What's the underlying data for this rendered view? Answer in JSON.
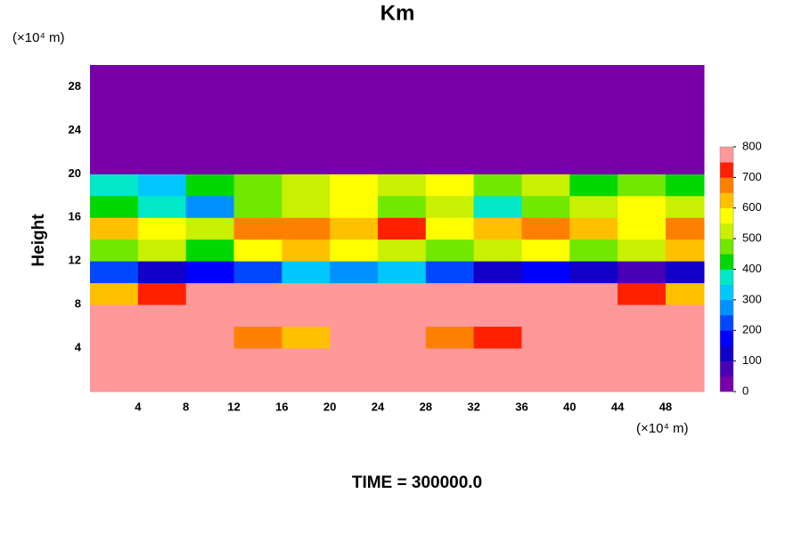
{
  "chart_data": {
    "type": "contour",
    "title": "Km",
    "y_unit": "(×10⁴ m)",
    "x_unit": "(×10⁴ m)",
    "ylabel": "Height",
    "footer": "TIME = 300000.0",
    "xlim": [
      0,
      51.2
    ],
    "ylim": [
      0,
      30
    ],
    "xticks": [
      4,
      8,
      12,
      16,
      20,
      24,
      28,
      32,
      36,
      40,
      44,
      48
    ],
    "yticks": [
      4,
      8,
      12,
      16,
      20,
      24,
      28
    ],
    "x": [
      2,
      6,
      10,
      14,
      18,
      22,
      26,
      30,
      34,
      38,
      42,
      46,
      50
    ],
    "y": [
      1,
      3,
      5,
      7,
      9,
      11,
      13,
      15,
      17,
      19,
      21,
      23,
      25,
      27,
      29
    ],
    "z": [
      [
        800,
        800,
        800,
        800,
        800,
        800,
        800,
        800,
        800,
        800,
        800,
        800,
        800
      ],
      [
        750,
        800,
        800,
        800,
        800,
        800,
        800,
        800,
        800,
        800,
        800,
        800,
        800
      ],
      [
        800,
        800,
        800,
        650,
        600,
        800,
        800,
        650,
        700,
        800,
        800,
        800,
        750
      ],
      [
        800,
        800,
        800,
        800,
        750,
        800,
        800,
        750,
        800,
        800,
        800,
        800,
        800
      ],
      [
        600,
        700,
        750,
        800,
        800,
        800,
        800,
        800,
        800,
        800,
        750,
        700,
        600
      ],
      [
        200,
        100,
        150,
        200,
        300,
        250,
        300,
        200,
        100,
        150,
        100,
        50,
        100
      ],
      [
        450,
        500,
        400,
        550,
        600,
        550,
        500,
        450,
        500,
        550,
        450,
        500,
        600
      ],
      [
        600,
        550,
        500,
        650,
        650,
        600,
        700,
        550,
        600,
        650,
        600,
        550,
        650
      ],
      [
        400,
        350,
        250,
        450,
        500,
        550,
        450,
        500,
        350,
        450,
        500,
        550,
        500
      ],
      [
        350,
        300,
        400,
        450,
        500,
        550,
        500,
        550,
        450,
        500,
        400,
        450,
        400
      ],
      [
        0,
        0,
        0,
        0,
        0,
        0,
        0,
        0,
        0,
        0,
        0,
        0,
        0
      ],
      [
        0,
        0,
        0,
        0,
        0,
        0,
        0,
        0,
        0,
        0,
        0,
        0,
        0
      ],
      [
        0,
        0,
        0,
        0,
        0,
        0,
        0,
        0,
        0,
        0,
        0,
        0,
        0
      ],
      [
        0,
        0,
        0,
        0,
        0,
        0,
        0,
        0,
        0,
        0,
        0,
        0,
        0
      ],
      [
        0,
        0,
        0,
        0,
        0,
        0,
        0,
        0,
        0,
        0,
        0,
        0,
        0
      ]
    ],
    "clim": [
      0,
      800
    ],
    "cticks": [
      0,
      100,
      200,
      300,
      400,
      500,
      600,
      700,
      800
    ],
    "colors": [
      "#7800a8",
      "#4800b4",
      "#1000c8",
      "#0000ff",
      "#0048ff",
      "#0090ff",
      "#00c8ff",
      "#00e8c8",
      "#00d800",
      "#70e800",
      "#c8f000",
      "#ffff00",
      "#ffc000",
      "#ff8000",
      "#ff2000",
      "#ff9898"
    ]
  }
}
